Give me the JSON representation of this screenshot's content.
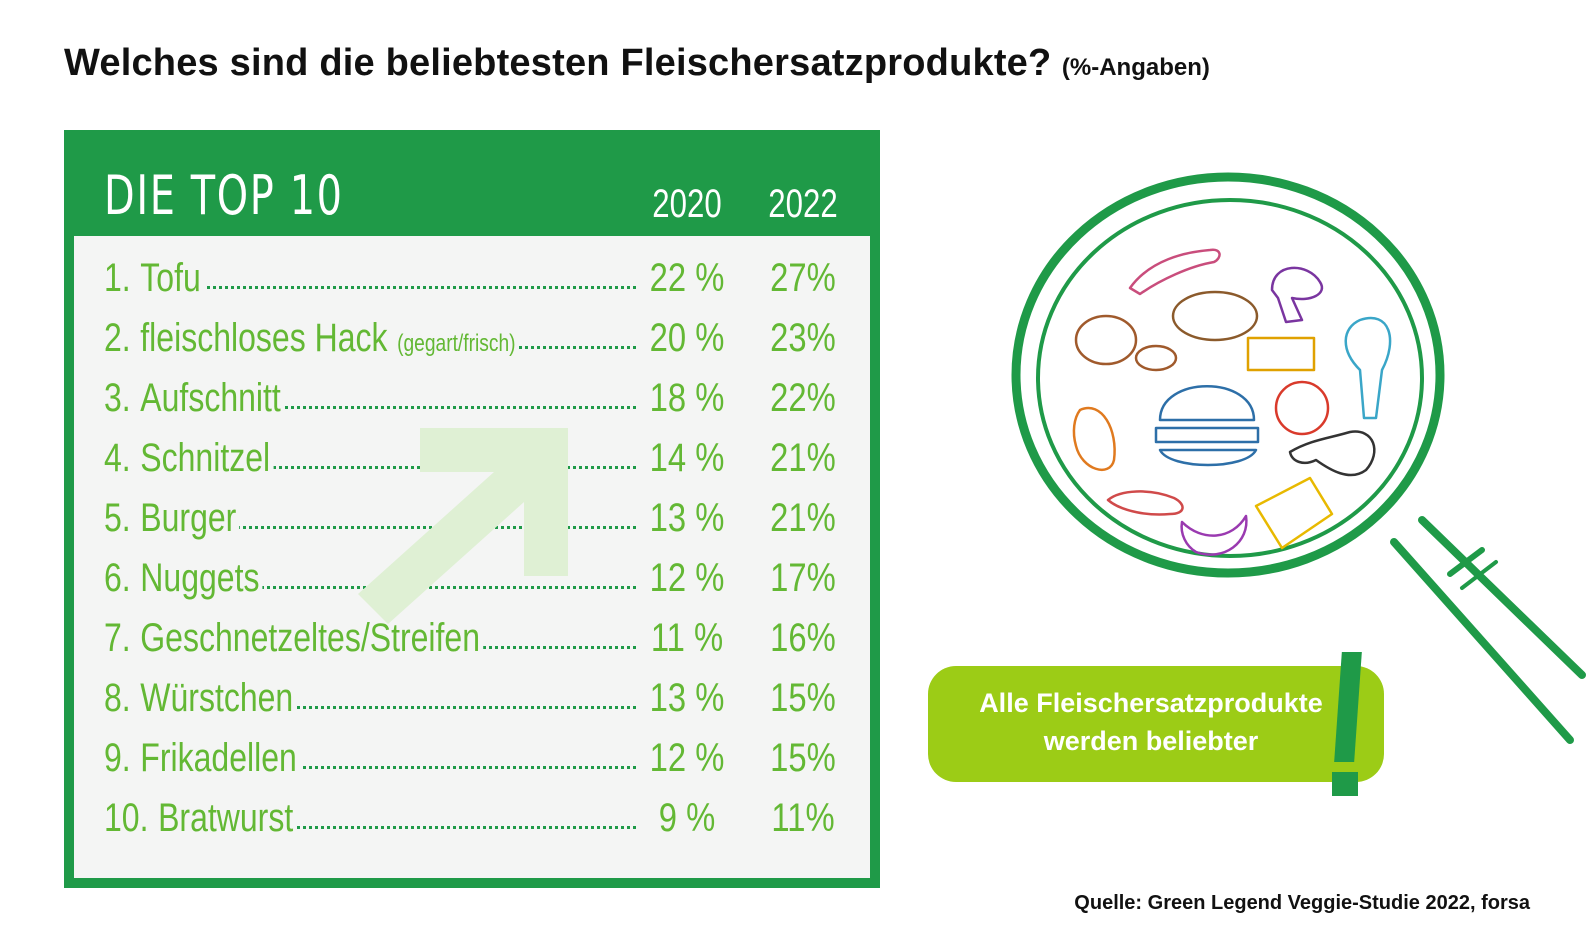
{
  "title": "Welches sind die beliebtesten Fleischersatzprodukte?",
  "title_unit": "(%-Angaben)",
  "panel_header": "DIE TOP 10",
  "source": "Quelle: Green Legend Veggie-Studie 2022, forsa",
  "callout": {
    "line1": "Alle Fleischersatzprodukte",
    "line2": "werden beliebter"
  },
  "colors": {
    "brand_green": "#1f9a48",
    "value_green": "#63b834",
    "callout_lime": "#9ccc16",
    "arrow_tint": "#dff0d4"
  },
  "chart_data": {
    "type": "table",
    "title": "Welches sind die beliebtesten Fleischersatzprodukte?",
    "unit": "(%-Angaben)",
    "columns": [
      "2020",
      "2022"
    ],
    "rows": [
      {
        "rank": "1.",
        "label": "Tofu",
        "note": "",
        "v2020": "22 %",
        "v2022": "27%"
      },
      {
        "rank": "2.",
        "label": "fleischloses Hack",
        "note": "(gegart/frisch)",
        "v2020": "20 %",
        "v2022": "23%"
      },
      {
        "rank": "3.",
        "label": "Aufschnitt",
        "note": "",
        "v2020": "18 %",
        "v2022": "22%"
      },
      {
        "rank": "4.",
        "label": "Schnitzel",
        "note": "",
        "v2020": "14 %",
        "v2022": "21%"
      },
      {
        "rank": "5.",
        "label": "Burger",
        "note": "",
        "v2020": "13 %",
        "v2022": "21%"
      },
      {
        "rank": "6.",
        "label": "Nuggets",
        "note": "",
        "v2020": "12 %",
        "v2022": "17%"
      },
      {
        "rank": "7.",
        "label": "Geschnetzeltes/Streifen",
        "note": "",
        "v2020": "11 %",
        "v2022": "16%"
      },
      {
        "rank": "8.",
        "label": "Würstchen",
        "note": "",
        "v2020": "13 %",
        "v2022": "15%"
      },
      {
        "rank": "9.",
        "label": "Frikadellen",
        "note": "",
        "v2020": "12 %",
        "v2022": "15%"
      },
      {
        "rank": "10.",
        "label": "Bratwurst",
        "note": "",
        "v2020": "9 %",
        "v2022": "11%"
      }
    ]
  }
}
